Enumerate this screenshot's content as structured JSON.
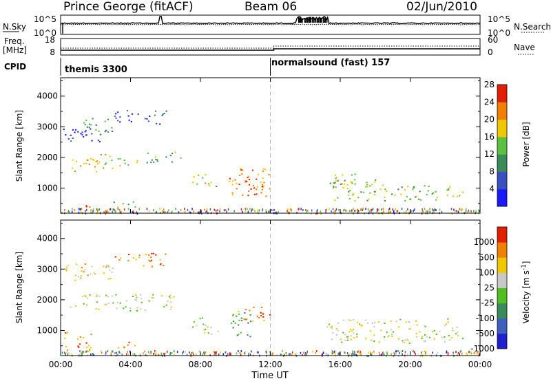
{
  "header": {
    "station": "Prince George (fitACF)",
    "beam": "Beam 06",
    "date": "02/Jun/2010"
  },
  "noise_panel": {
    "left_label": "N.Sky",
    "right_label": "N.Search",
    "left_ticks": [
      "10^5",
      "10^0"
    ],
    "right_ticks": [
      "10^5",
      "10^0"
    ]
  },
  "freq_panel": {
    "left_label": "Freq.",
    "left_unit": "[MHz]",
    "left_ticks": [
      "18",
      "8"
    ],
    "right_label": "Nave",
    "right_ticks": [
      "60",
      "0"
    ]
  },
  "cpid": {
    "label": "CPID",
    "modes": [
      {
        "name": "themis 3300",
        "start_hour": 0
      },
      {
        "name": "normalsound (fast) 157",
        "start_hour": 12
      }
    ]
  },
  "time_axis": {
    "label": "Time UT",
    "ticks": [
      "00:00",
      "04:00",
      "08:00",
      "12:00",
      "16:00",
      "20:00",
      "00:00"
    ],
    "hours": [
      0,
      4,
      8,
      12,
      16,
      20,
      24
    ]
  },
  "chart_data": [
    {
      "type": "heatmap",
      "ylabel": "Slant Range [km]",
      "ylim": [
        180,
        4600
      ],
      "yticks": [
        1000,
        2000,
        3000,
        4000
      ],
      "xlim": [
        0,
        24
      ],
      "colorbar": {
        "label": "Power [dB]",
        "ticks": [
          "4",
          "8",
          "12",
          "16",
          "20",
          "24",
          "28"
        ],
        "colors": [
          "#1a1aff",
          "#3a4fc0",
          "#3a8a5a",
          "#5cc040",
          "#f0c800",
          "#f08000",
          "#e02000"
        ]
      },
      "echo_regions": [
        {
          "t": [
            0.0,
            2.4
          ],
          "r": [
            2500,
            3000
          ],
          "level": 1
        },
        {
          "t": [
            1.2,
            3.2
          ],
          "r": [
            2750,
            3350
          ],
          "level": 2
        },
        {
          "t": [
            3.0,
            6.1
          ],
          "r": [
            3100,
            3550
          ],
          "level": 1
        },
        {
          "t": [
            0.5,
            3.0
          ],
          "r": [
            1550,
            2150
          ],
          "level": 4
        },
        {
          "t": [
            3.2,
            4.0
          ],
          "r": [
            1600,
            2000
          ],
          "level": 3
        },
        {
          "t": [
            4.2,
            5.6
          ],
          "r": [
            1750,
            2200
          ],
          "level": 3
        },
        {
          "t": [
            6.0,
            6.9
          ],
          "r": [
            1850,
            2200
          ],
          "level": 3
        },
        {
          "t": [
            7.3,
            8.3
          ],
          "r": [
            1050,
            1500
          ],
          "level": 4
        },
        {
          "t": [
            8.4,
            9.0
          ],
          "r": [
            950,
            1300
          ],
          "level": 3
        },
        {
          "t": [
            9.6,
            12.0
          ],
          "r": [
            750,
            1700
          ],
          "level": 5
        },
        {
          "t": [
            10.5,
            11.7
          ],
          "r": [
            900,
            1350
          ],
          "level": 6
        },
        {
          "t": [
            3.0,
            4.3
          ],
          "r": [
            400,
            650
          ],
          "level": 3
        },
        {
          "t": [
            1.3,
            2.0
          ],
          "r": [
            300,
            600
          ],
          "level": 6
        },
        {
          "t": [
            15.2,
            18.5
          ],
          "r": [
            600,
            1300
          ],
          "level": 3
        },
        {
          "t": [
            18.5,
            23.0
          ],
          "r": [
            600,
            1100
          ],
          "level": 3
        },
        {
          "t": [
            15.5,
            17.0
          ],
          "r": [
            1000,
            1500
          ],
          "level": 4
        }
      ]
    },
    {
      "type": "heatmap",
      "ylabel": "Slant Range [km]",
      "ylim": [
        180,
        4600
      ],
      "yticks": [
        1000,
        2000,
        3000,
        4000
      ],
      "xlim": [
        0,
        24
      ],
      "colorbar": {
        "label": "Velocity [m s^-1]",
        "ticks": [
          "1000",
          "500",
          "100",
          "25",
          "-25",
          "-100",
          "-500",
          "-1000"
        ],
        "colors": [
          "#2020d0",
          "#4060c0",
          "#3a8a5a",
          "#50c020",
          "#c8c8c8",
          "#f0c800",
          "#f08000",
          "#e02000"
        ]
      },
      "echo_regions": [
        {
          "t": [
            0.0,
            3.0
          ],
          "r": [
            2600,
            3200
          ],
          "level": 5
        },
        {
          "t": [
            3.0,
            6.1
          ],
          "r": [
            3100,
            3550
          ],
          "level": 6
        },
        {
          "t": [
            0.5,
            6.5
          ],
          "r": [
            1650,
            2200
          ],
          "level": 4
        },
        {
          "t": [
            7.5,
            9.0
          ],
          "r": [
            900,
            1450
          ],
          "level": 4
        },
        {
          "t": [
            9.6,
            11.0
          ],
          "r": [
            800,
            1600
          ],
          "level": 2
        },
        {
          "t": [
            9.8,
            12.0
          ],
          "r": [
            1300,
            1800
          ],
          "level": 6
        },
        {
          "t": [
            3.0,
            4.3
          ],
          "r": [
            400,
            650
          ],
          "level": 6
        },
        {
          "t": [
            0.2,
            1.8
          ],
          "r": [
            300,
            1000
          ],
          "level": 6
        },
        {
          "t": [
            15.2,
            23.0
          ],
          "r": [
            600,
            1400
          ],
          "level": 4
        }
      ]
    }
  ]
}
